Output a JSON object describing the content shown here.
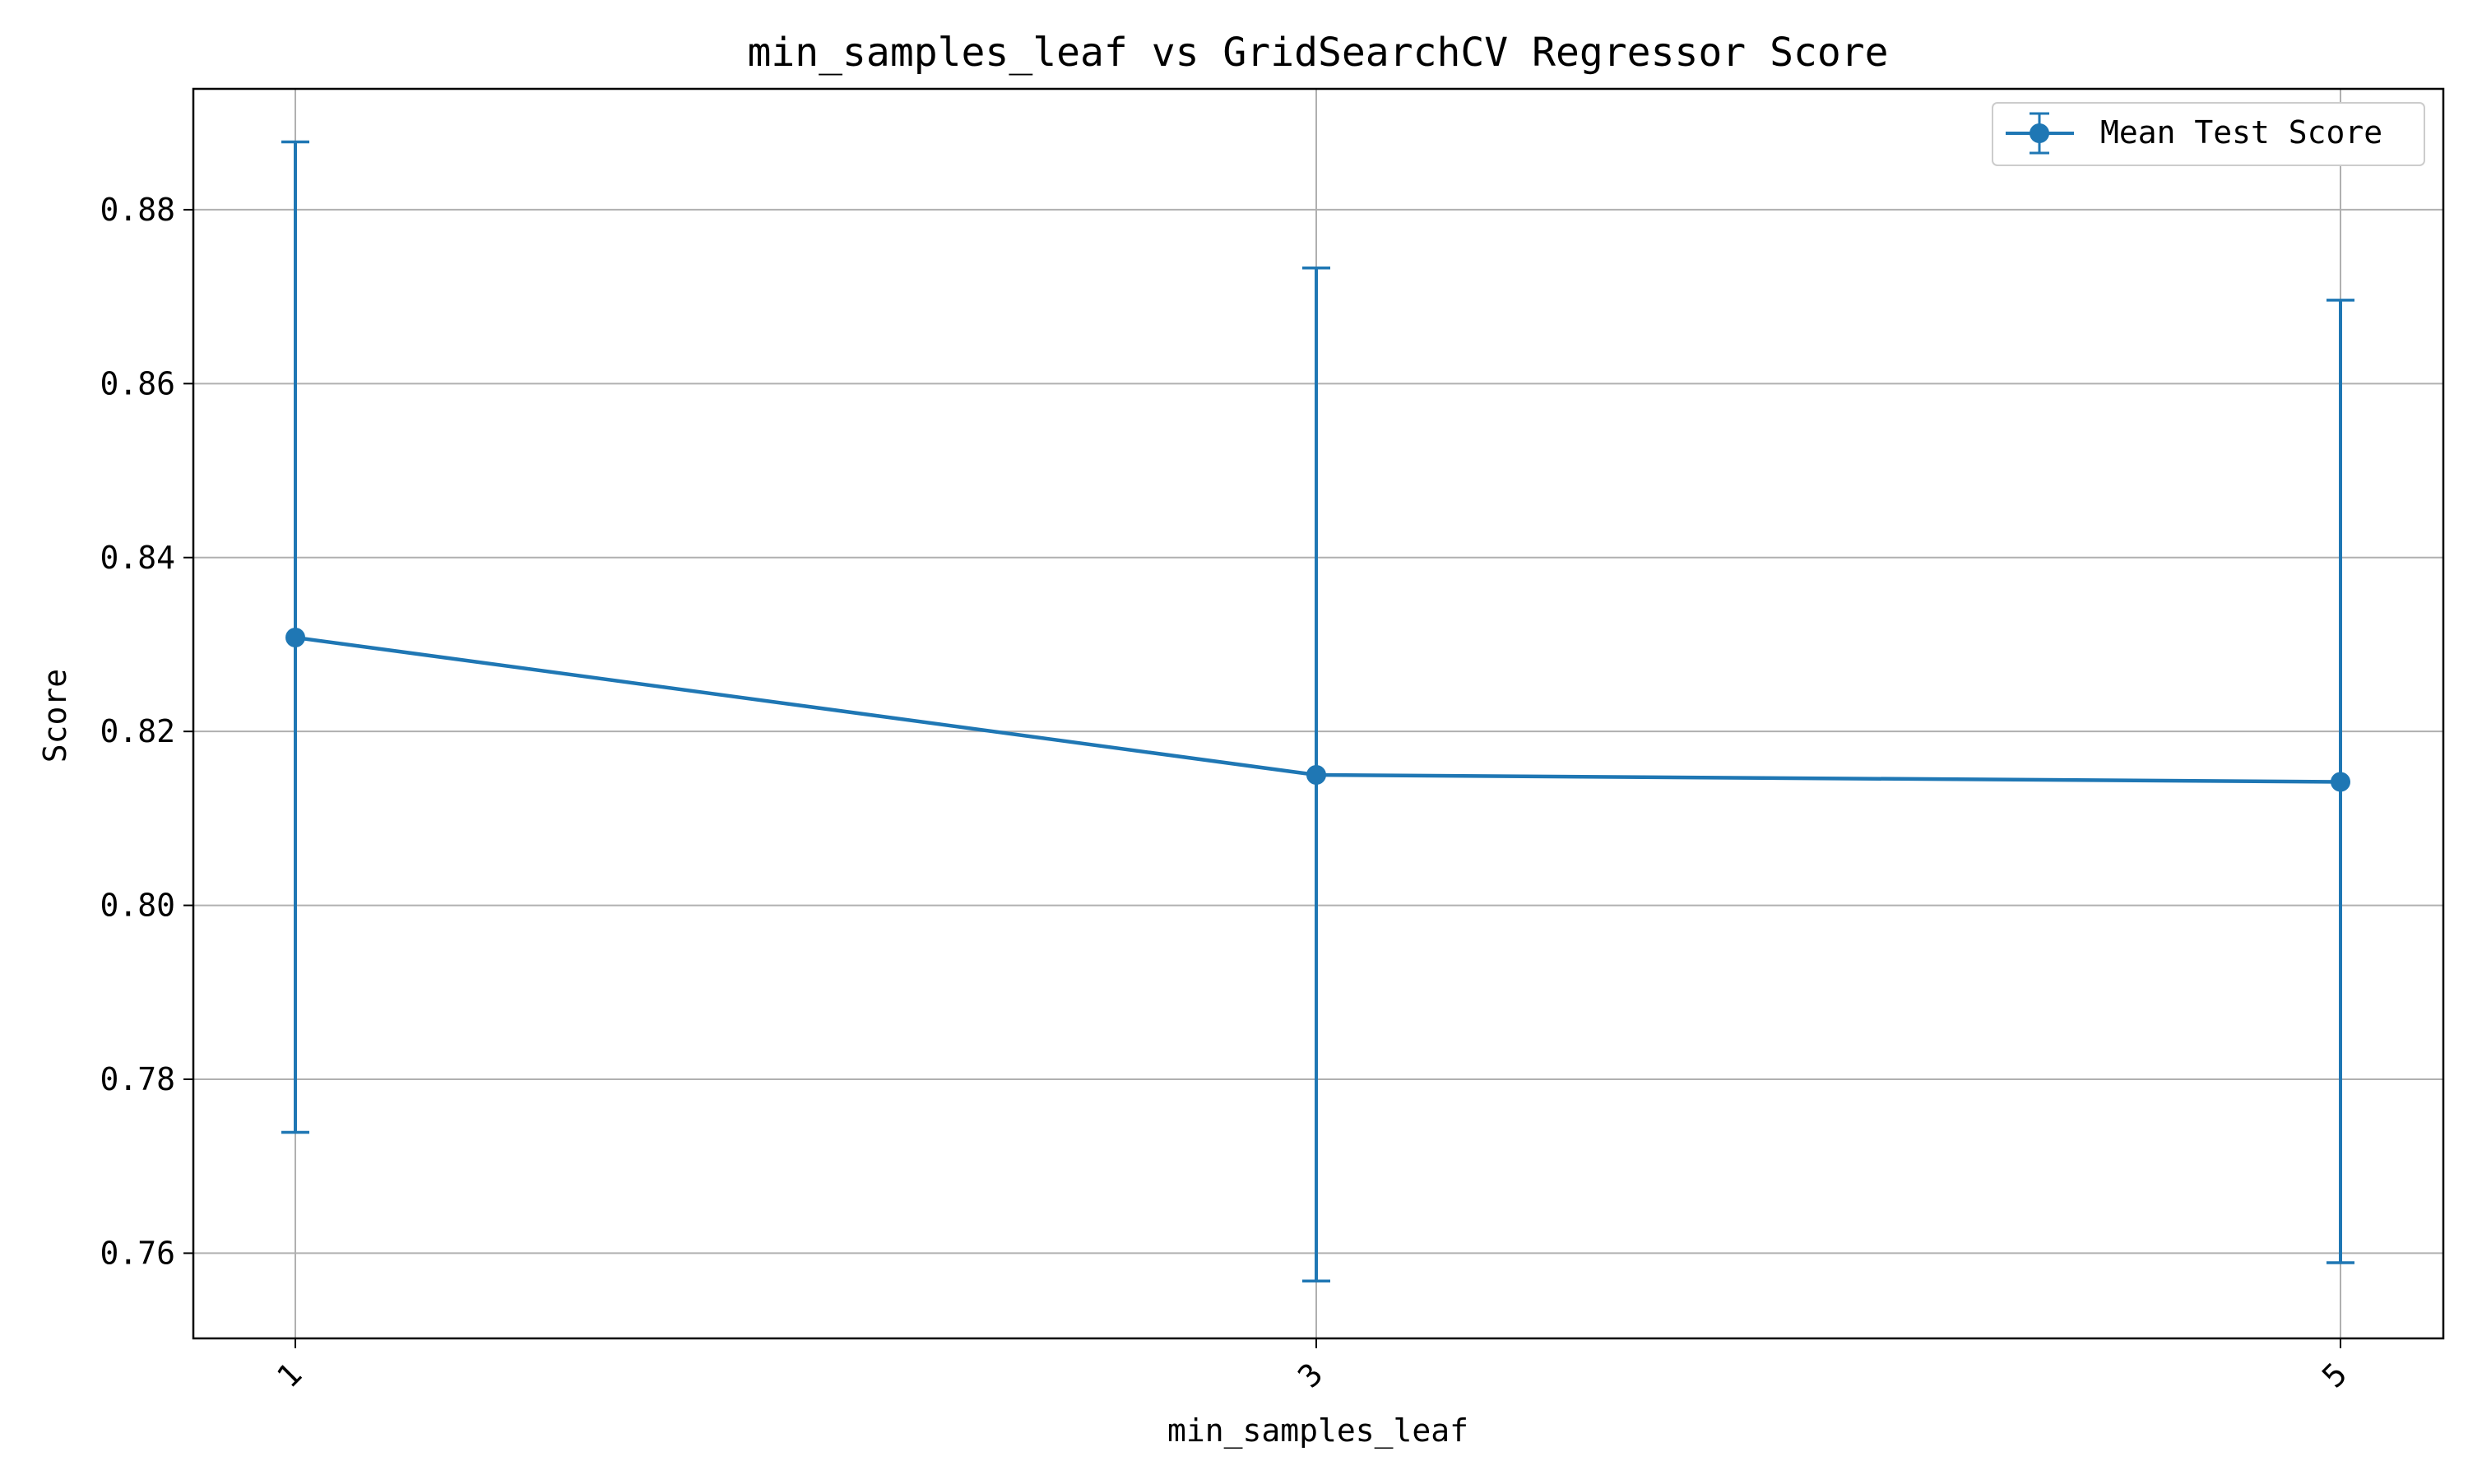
{
  "chart_data": {
    "type": "line",
    "title": "min_samples_leaf vs GridSearchCV Regressor Score",
    "xlabel": "min_samples_leaf",
    "ylabel": "Score",
    "categories": [
      "1",
      "3",
      "5"
    ],
    "x": [
      1,
      3,
      5
    ],
    "series": [
      {
        "name": "Mean Test Score",
        "values": [
          0.8308,
          0.815,
          0.8142
        ],
        "error_low": [
          0.7739,
          0.7568,
          0.7589
        ],
        "error_high": [
          0.8878,
          0.8733,
          0.8696
        ],
        "color": "#1f77b4",
        "marker": "circle"
      }
    ],
    "ylim": [
      0.7502,
      0.8939
    ],
    "yticks": [
      0.76,
      0.78,
      0.8,
      0.82,
      0.84,
      0.86,
      0.88
    ],
    "ytick_labels": [
      "0.76",
      "0.78",
      "0.80",
      "0.82",
      "0.84",
      "0.86",
      "0.88"
    ],
    "xtick_rotation": "45 degrees",
    "grid": true,
    "legend_position": "top-right"
  }
}
